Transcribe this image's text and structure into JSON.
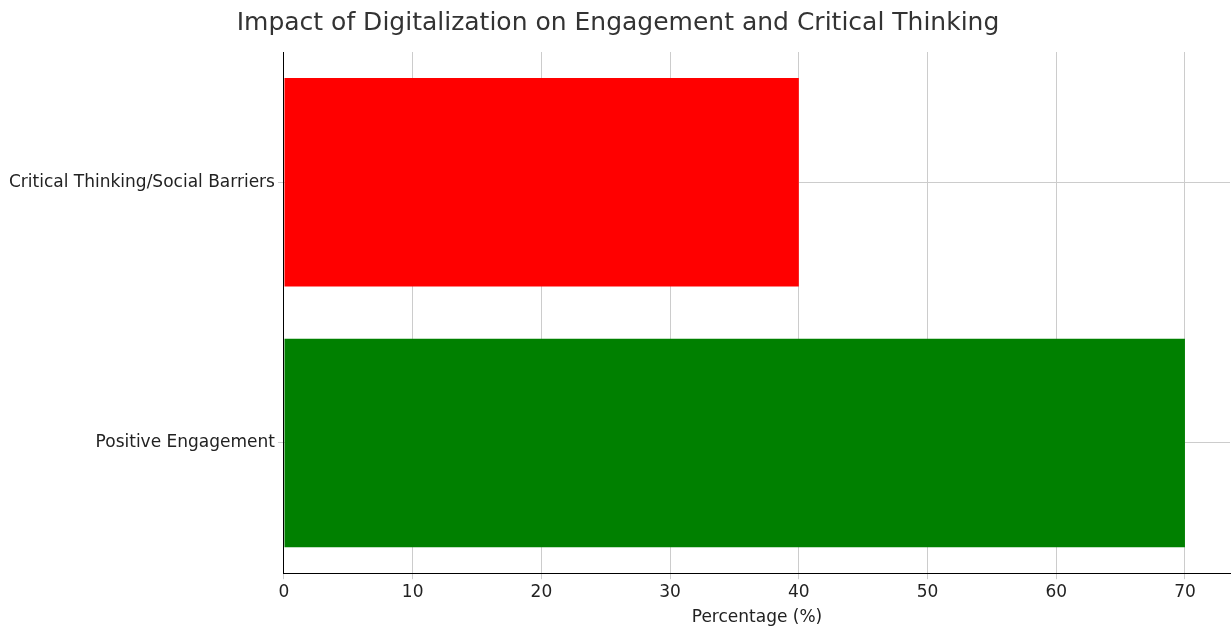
{
  "chart_data": {
    "type": "bar",
    "orientation": "horizontal",
    "title": "Impact of Digitalization on Engagement and Critical Thinking",
    "xlabel": "Percentage (%)",
    "categories": [
      "Critical Thinking/Social Barriers",
      "Positive Engagement"
    ],
    "values": [
      40,
      70
    ],
    "colors": [
      "#ff0000",
      "#008000"
    ],
    "xlim": [
      0,
      73.5
    ],
    "xticks": [
      0,
      10,
      20,
      30,
      40,
      50,
      60,
      70
    ],
    "grid": true
  }
}
